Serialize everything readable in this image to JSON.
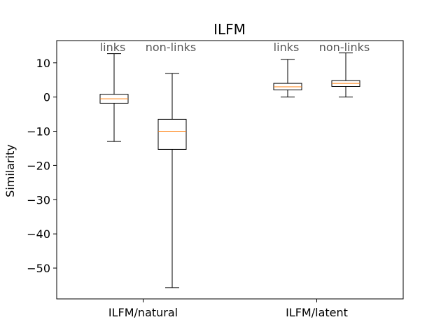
{
  "chart_data": {
    "type": "boxplot",
    "title": "ILFM",
    "xlabel": "",
    "ylabel": "Similarity",
    "ylim": [
      -59,
      16.5
    ],
    "yticks": [
      10,
      0,
      -10,
      -20,
      -30,
      -40,
      -50
    ],
    "ytick_labels": [
      "10",
      "0",
      "−10",
      "−20",
      "−30",
      "−40",
      "−50"
    ],
    "groups": [
      "ILFM/natural",
      "ILFM/latent"
    ],
    "box_labels": [
      "links",
      "non-links",
      "links",
      "non-links"
    ],
    "boxes": [
      {
        "group": "ILFM/natural",
        "label": "links",
        "whisker_low": -13,
        "q1": -1.8,
        "median": -0.5,
        "q3": 0.8,
        "whisker_high": 12.7
      },
      {
        "group": "ILFM/natural",
        "label": "non-links",
        "whisker_low": -55.7,
        "q1": -15.3,
        "median": -10,
        "q3": -6.5,
        "whisker_high": 6.9
      },
      {
        "group": "ILFM/latent",
        "label": "links",
        "whisker_low": 0,
        "q1": 2.1,
        "median": 3,
        "q3": 4,
        "whisker_high": 11
      },
      {
        "group": "ILFM/latent",
        "label": "non-links",
        "whisker_low": 0,
        "q1": 3.1,
        "median": 4,
        "q3": 4.8,
        "whisker_high": 12.9
      }
    ],
    "colors": {
      "box": "#000000",
      "median": "#ff7f0e",
      "annotation": "#555555"
    },
    "grid": false
  }
}
